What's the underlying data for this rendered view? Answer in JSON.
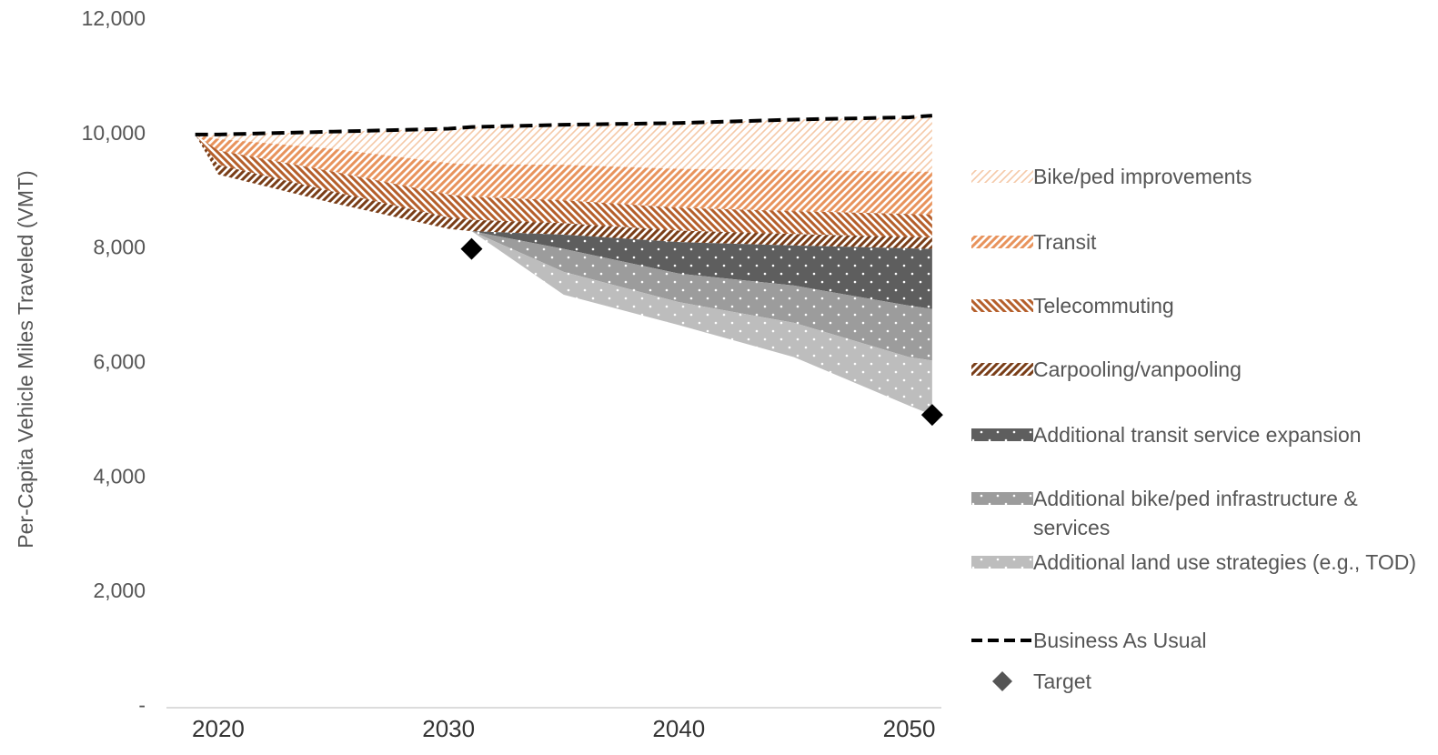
{
  "chart_data": {
    "type": "area",
    "y_axis_label": "Per-Capita Vehicle Miles Traveled (VMT)",
    "x": [
      2019,
      2020,
      2025,
      2030,
      2031,
      2035,
      2040,
      2045,
      2050,
      2051
    ],
    "xlim": [
      2017.75,
      2051.4
    ],
    "xticks": [
      2020,
      2030,
      2040,
      2050
    ],
    "ylim": [
      0,
      12000
    ],
    "yticks": [
      {
        "value": 0,
        "label": "-"
      },
      {
        "value": 2000,
        "label": "2,000"
      },
      {
        "value": 4000,
        "label": "4,000"
      },
      {
        "value": 6000,
        "label": "6,000"
      },
      {
        "value": 8000,
        "label": "8,000"
      },
      {
        "value": 10000,
        "label": "10,000"
      },
      {
        "value": 12000,
        "label": "12,000"
      }
    ],
    "baseline": {
      "name": "Business As Usual",
      "color": "#000000",
      "values": [
        10000,
        10000,
        10050,
        10100,
        10130,
        10170,
        10200,
        10260,
        10300,
        10330
      ]
    },
    "series": [
      {
        "name": "Bike/ped improvements",
        "color": "#f5c9a8",
        "pattern": "light-diagonal",
        "values": [
          0,
          80,
          300,
          600,
          650,
          700,
          800,
          880,
          950,
          980
        ]
      },
      {
        "name": "Transit",
        "color": "#e8935c",
        "pattern": "diagonal",
        "values": [
          0,
          200,
          400,
          550,
          570,
          620,
          680,
          720,
          740,
          750
        ]
      },
      {
        "name": "Telecommuting",
        "color": "#b55f2b",
        "pattern": "back-diagonal",
        "values": [
          0,
          250,
          350,
          400,
          400,
          400,
          400,
          400,
          400,
          400
        ]
      },
      {
        "name": "Carpooling/vanpooling",
        "color": "#7a3e18",
        "pattern": "diagonal",
        "values": [
          0,
          170,
          200,
          200,
          200,
          200,
          200,
          200,
          200,
          200
        ]
      },
      {
        "name": "Additional transit service expansion",
        "color": "#5e5e5e",
        "pattern": "dots",
        "values": [
          0,
          0,
          0,
          0,
          0,
          250,
          550,
          700,
          1000,
          1050
        ]
      },
      {
        "name": "Additional bike/ped infrastructure & services",
        "color": "#9c9c9c",
        "pattern": "dots",
        "values": [
          0,
          0,
          0,
          0,
          0,
          400,
          500,
          650,
          900,
          900
        ]
      },
      {
        "name": "Additional land use strategies (e.g., TOD)",
        "color": "#bdbdbd",
        "pattern": "dots",
        "values": [
          0,
          0,
          0,
          0,
          0,
          400,
          400,
          600,
          850,
          950
        ]
      }
    ],
    "target": {
      "name": "Target",
      "color": "#000000",
      "x": [
        2031,
        2051
      ],
      "values": [
        8000,
        5100
      ]
    }
  }
}
